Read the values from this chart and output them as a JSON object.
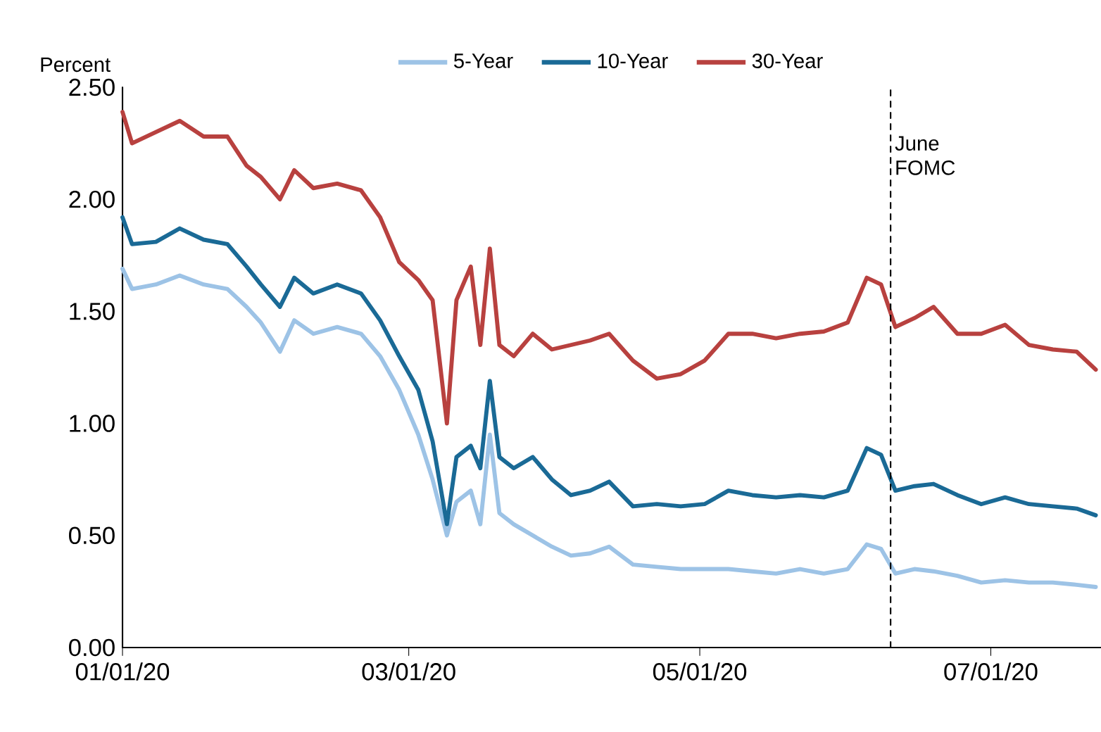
{
  "chart_data": {
    "type": "line",
    "ylabel": "Percent",
    "legend": "top",
    "line_style": "solid",
    "x": [
      "2020-01-01",
      "2020-01-03",
      "2020-01-08",
      "2020-01-13",
      "2020-01-18",
      "2020-01-23",
      "2020-01-27",
      "2020-01-30",
      "2020-02-03",
      "2020-02-06",
      "2020-02-10",
      "2020-02-15",
      "2020-02-20",
      "2020-02-24",
      "2020-02-28",
      "2020-03-03",
      "2020-03-06",
      "2020-03-09",
      "2020-03-11",
      "2020-03-14",
      "2020-03-16",
      "2020-03-18",
      "2020-03-20",
      "2020-03-23",
      "2020-03-27",
      "2020-03-31",
      "2020-04-04",
      "2020-04-08",
      "2020-04-12",
      "2020-04-17",
      "2020-04-22",
      "2020-04-27",
      "2020-05-02",
      "2020-05-07",
      "2020-05-12",
      "2020-05-17",
      "2020-05-22",
      "2020-05-27",
      "2020-06-01",
      "2020-06-05",
      "2020-06-08",
      "2020-06-11",
      "2020-06-15",
      "2020-06-19",
      "2020-06-24",
      "2020-06-29",
      "2020-07-04",
      "2020-07-09",
      "2020-07-14",
      "2020-07-19",
      "2020-07-23"
    ],
    "xlim": [
      "2020-01-01",
      "2020-07-24"
    ],
    "xticks": [
      {
        "value": "2020-01-01",
        "label": "01/01/20"
      },
      {
        "value": "2020-03-01",
        "label": "03/01/20"
      },
      {
        "value": "2020-05-01",
        "label": "05/01/20"
      },
      {
        "value": "2020-07-01",
        "label": "07/01/20"
      }
    ],
    "ylim": [
      0,
      2.5
    ],
    "yticks": [
      {
        "value": 0,
        "label": "0.00"
      },
      {
        "value": 0.5,
        "label": "0.50"
      },
      {
        "value": 1,
        "label": "1.00"
      },
      {
        "value": 1.5,
        "label": "1.50"
      },
      {
        "value": 2,
        "label": "2.00"
      },
      {
        "value": 2.5,
        "label": "2.50"
      }
    ],
    "series": [
      {
        "name": "5-Year",
        "color": "#9dc3e6",
        "values": [
          1.69,
          1.6,
          1.62,
          1.66,
          1.62,
          1.6,
          1.52,
          1.45,
          1.32,
          1.46,
          1.4,
          1.43,
          1.4,
          1.3,
          1.15,
          0.95,
          0.75,
          0.5,
          0.65,
          0.7,
          0.55,
          0.95,
          0.6,
          0.55,
          0.5,
          0.45,
          0.41,
          0.42,
          0.45,
          0.37,
          0.36,
          0.35,
          0.35,
          0.35,
          0.34,
          0.33,
          0.35,
          0.33,
          0.35,
          0.46,
          0.44,
          0.33,
          0.35,
          0.34,
          0.32,
          0.29,
          0.3,
          0.29,
          0.29,
          0.28,
          0.27
        ]
      },
      {
        "name": "10-Year",
        "color": "#1a6a96",
        "values": [
          1.92,
          1.8,
          1.81,
          1.87,
          1.82,
          1.8,
          1.7,
          1.62,
          1.52,
          1.65,
          1.58,
          1.62,
          1.58,
          1.46,
          1.3,
          1.15,
          0.92,
          0.55,
          0.85,
          0.9,
          0.8,
          1.19,
          0.85,
          0.8,
          0.85,
          0.75,
          0.68,
          0.7,
          0.74,
          0.63,
          0.64,
          0.63,
          0.64,
          0.7,
          0.68,
          0.67,
          0.68,
          0.67,
          0.7,
          0.89,
          0.86,
          0.7,
          0.72,
          0.73,
          0.68,
          0.64,
          0.67,
          0.64,
          0.63,
          0.62,
          0.59
        ]
      },
      {
        "name": "30-Year",
        "color": "#b8413f",
        "values": [
          2.39,
          2.25,
          2.3,
          2.35,
          2.28,
          2.28,
          2.15,
          2.1,
          2.0,
          2.13,
          2.05,
          2.07,
          2.04,
          1.92,
          1.72,
          1.64,
          1.55,
          1.0,
          1.55,
          1.7,
          1.35,
          1.78,
          1.35,
          1.3,
          1.4,
          1.33,
          1.35,
          1.37,
          1.4,
          1.28,
          1.2,
          1.22,
          1.28,
          1.4,
          1.4,
          1.38,
          1.4,
          1.41,
          1.45,
          1.65,
          1.62,
          1.43,
          1.47,
          1.52,
          1.4,
          1.4,
          1.44,
          1.35,
          1.33,
          1.32,
          1.24
        ]
      }
    ],
    "ref_lines": [
      {
        "axis": "x",
        "value": "2020-06-10",
        "label": "June FOMC",
        "color": "#000000",
        "line_style": "dashed"
      }
    ]
  }
}
